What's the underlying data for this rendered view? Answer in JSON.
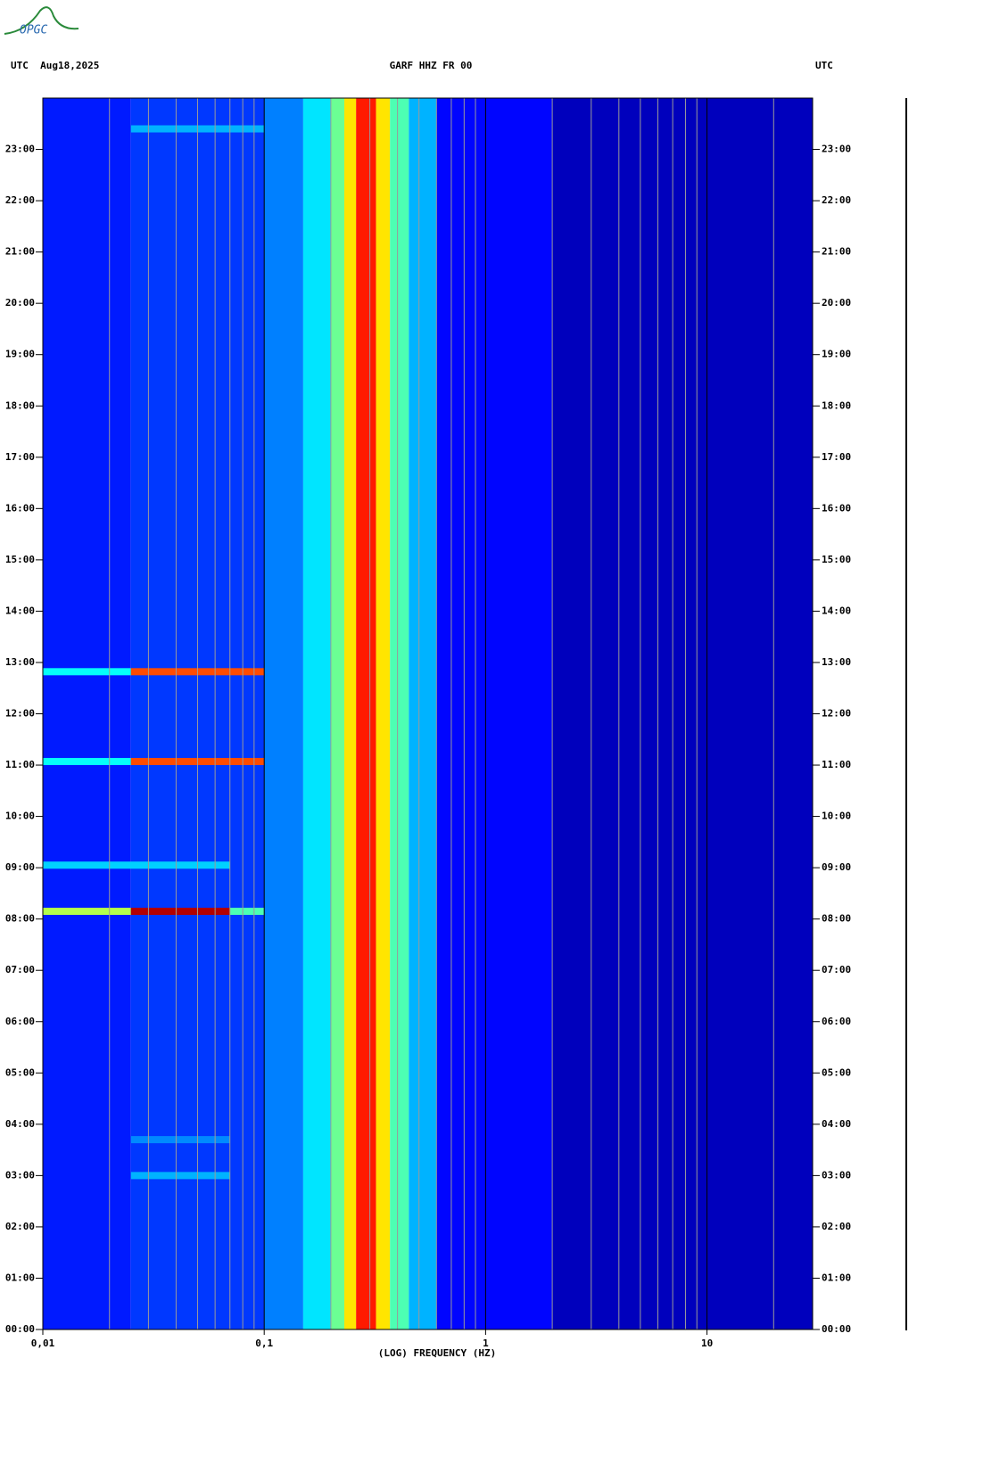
{
  "logo": "OPGC",
  "chart_data": {
    "type": "spectrogram",
    "title": "GARF HHZ FR 00",
    "date_label": "UTC  Aug18,2025",
    "right_label": "UTC",
    "xlabel": "(LOG) FREQUENCY (HZ)",
    "xscale": "log",
    "xlim": [
      0.01,
      30
    ],
    "xticks": [
      {
        "value": 0.01,
        "label": "0,01"
      },
      {
        "value": 0.1,
        "label": "0,1"
      },
      1,
      10
    ],
    "xminor": [
      0.02,
      0.03,
      0.04,
      0.05,
      0.06,
      0.07,
      0.08,
      0.09,
      0.2,
      0.3,
      0.4,
      0.5,
      0.6,
      0.7,
      0.8,
      0.9,
      2,
      3,
      4,
      5,
      6,
      7,
      8,
      9,
      20
    ],
    "ylim": [
      0,
      24
    ],
    "yticks": [
      {
        "value": 0,
        "label": "00:00"
      },
      {
        "value": 1,
        "label": "01:00"
      },
      {
        "value": 2,
        "label": "02:00"
      },
      {
        "value": 3,
        "label": "03:00"
      },
      {
        "value": 4,
        "label": "04:00"
      },
      {
        "value": 5,
        "label": "05:00"
      },
      {
        "value": 6,
        "label": "06:00"
      },
      {
        "value": 7,
        "label": "07:00"
      },
      {
        "value": 8,
        "label": "08:00"
      },
      {
        "value": 9,
        "label": "09:00"
      },
      {
        "value": 10,
        "label": "10:00"
      },
      {
        "value": 11,
        "label": "11:00"
      },
      {
        "value": 12,
        "label": "12:00"
      },
      {
        "value": 13,
        "label": "13:00"
      },
      {
        "value": 14,
        "label": "14:00"
      },
      {
        "value": 15,
        "label": "15:00"
      },
      {
        "value": 16,
        "label": "16:00"
      },
      {
        "value": 17,
        "label": "17:00"
      },
      {
        "value": 18,
        "label": "18:00"
      },
      {
        "value": 19,
        "label": "19:00"
      },
      {
        "value": 20,
        "label": "20:00"
      },
      {
        "value": 21,
        "label": "21:00"
      },
      {
        "value": 22,
        "label": "22:00"
      },
      {
        "value": 23,
        "label": "23:00"
      }
    ],
    "bins": [
      0.01,
      0.025,
      0.05,
      0.1,
      0.15,
      0.2,
      0.23,
      0.26,
      0.32,
      0.37,
      0.45,
      0.6,
      2,
      30
    ],
    "levels": [
      1.5,
      1.8,
      1.8,
      2.5,
      3.5,
      4.8,
      6.5,
      8.5,
      6.5,
      4.5,
      3,
      1.3,
      0.6
    ],
    "events": [
      {
        "time": 8.15,
        "f0": 0.01,
        "f1": 0.025,
        "level": 5.5
      },
      {
        "time": 8.15,
        "f0": 0.025,
        "f1": 0.07,
        "level": 9.5
      },
      {
        "time": 8.15,
        "f0": 0.07,
        "f1": 0.1,
        "level": 4.5
      },
      {
        "time": 9.05,
        "f0": 0.01,
        "f1": 0.07,
        "level": 3.3
      },
      {
        "time": 11.07,
        "f0": 0.01,
        "f1": 0.025,
        "level": 3.8
      },
      {
        "time": 11.07,
        "f0": 0.025,
        "f1": 0.1,
        "level": 8
      },
      {
        "time": 12.82,
        "f0": 0.01,
        "f1": 0.025,
        "level": 3.8
      },
      {
        "time": 12.82,
        "f0": 0.025,
        "f1": 0.1,
        "level": 8
      },
      {
        "time": 3.0,
        "f0": 0.025,
        "f1": 0.07,
        "level": 3
      },
      {
        "time": 3.7,
        "f0": 0.025,
        "f1": 0.07,
        "level": 2.6
      },
      {
        "time": 23.4,
        "f0": 0.025,
        "f1": 0.1,
        "level": 3
      }
    ],
    "levels_max": 10
  }
}
